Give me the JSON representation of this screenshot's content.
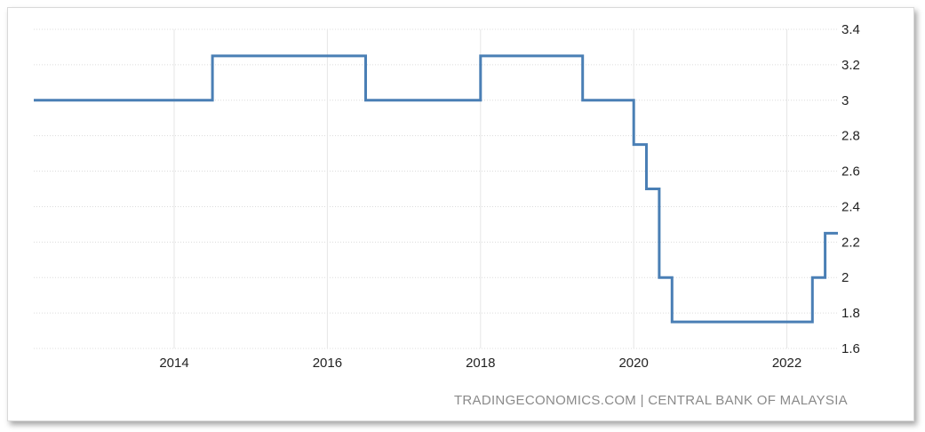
{
  "chart_data": {
    "type": "line",
    "title": "",
    "xlabel": "",
    "ylabel": "",
    "xlim": [
      "2012-03",
      "2022-09"
    ],
    "ylim": [
      1.6,
      3.4
    ],
    "y_ticks": [
      "3.4",
      "3.2",
      "3",
      "2.8",
      "2.6",
      "2.4",
      "2.2",
      "2",
      "1.8",
      "1.6"
    ],
    "x_ticks": [
      "2014",
      "2016",
      "2018",
      "2020",
      "2022"
    ],
    "grid": true,
    "line_style": "step",
    "series": [
      {
        "x": [
          "2012-03",
          "2014-07",
          "2016-07",
          "2018-01",
          "2019-05",
          "2020-01",
          "2020-03",
          "2020-05",
          "2020-07",
          "2022-05",
          "2022-07",
          "2022-09"
        ],
        "y": [
          3.0,
          3.25,
          3.0,
          3.25,
          3.0,
          2.75,
          2.5,
          2.0,
          1.75,
          2.0,
          2.25,
          2.25
        ],
        "color": "#4a7fb5"
      }
    ],
    "source": "TRADINGECONOMICS.COM | CENTRAL BANK OF MALAYSIA"
  }
}
